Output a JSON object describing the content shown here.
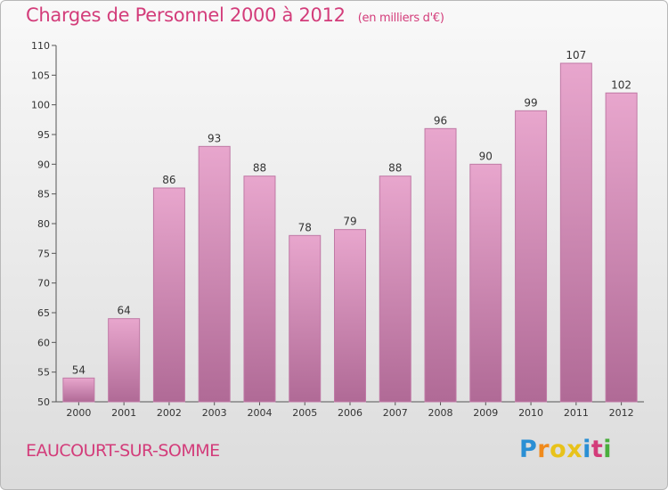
{
  "title": "Charges de Personnel 2000 à 2012",
  "subtitle": "(en milliers d'€)",
  "commune": "EAUCOURT-SUR-SOMME",
  "brand": {
    "letters": [
      "P",
      "r",
      "o",
      "x",
      "i",
      "t",
      "i"
    ],
    "colors": [
      "#2a8fd4",
      "#f08a1c",
      "#e8c21a",
      "#e8c21a",
      "#2a8fd4",
      "#d33c7a",
      "#4aae3c"
    ]
  },
  "colors": {
    "title": "#d33c7a",
    "bar_top": "#e8a6cd",
    "bar_bottom": "#b06a96",
    "bar_edge": "#c07aa6"
  },
  "chart_data": {
    "type": "bar",
    "categories": [
      "2000",
      "2001",
      "2002",
      "2003",
      "2004",
      "2005",
      "2006",
      "2007",
      "2008",
      "2009",
      "2010",
      "2011",
      "2012"
    ],
    "values": [
      54,
      64,
      86,
      93,
      88,
      78,
      79,
      88,
      96,
      90,
      99,
      107,
      102
    ],
    "ylim": [
      50,
      110
    ],
    "yticks": [
      50,
      55,
      60,
      65,
      70,
      75,
      80,
      85,
      90,
      95,
      100,
      105,
      110
    ],
    "grid": false
  }
}
